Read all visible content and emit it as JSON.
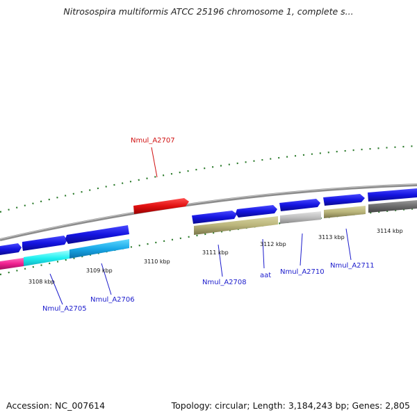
{
  "title": "Nitrosospira multiformis ATCC 25196 chromosome 1, complete s...",
  "footer": {
    "accession": "Accession: NC_007614",
    "stats": "Topology: circular; Length: 3,184,243 bp; Genes: 2,805"
  },
  "colors": {
    "background": "#ffffff",
    "backbone": "#8c8c8c",
    "tick": "#2a7a2a",
    "gene_forward": "#1414e0",
    "highlight_label": "#d01010",
    "label": "#1a1acc"
  },
  "ticks": [
    {
      "label": "3108 kbp"
    },
    {
      "label": "3109 kbp"
    },
    {
      "label": "3110 kbp"
    },
    {
      "label": "3111 kbp"
    },
    {
      "label": "3112 kbp"
    },
    {
      "label": "3113 kbp"
    },
    {
      "label": "3114 kbp"
    }
  ],
  "genes": [
    {
      "label": "Nmul_A2705",
      "strand": "forward",
      "color": "#1414e0",
      "highlight": false
    },
    {
      "label": "Nmul_A2706",
      "strand": "forward",
      "color": "#1414e0",
      "highlight": false
    },
    {
      "label": "Nmul_A2707",
      "strand": "forward",
      "color": "#e01414",
      "highlight": true
    },
    {
      "label": "Nmul_A2708",
      "strand": "forward",
      "color": "#1414e0",
      "highlight": false
    },
    {
      "label": "aat",
      "strand": "forward",
      "color": "#1414e0",
      "highlight": false
    },
    {
      "label": "Nmul_A2710",
      "strand": "forward",
      "color": "#1414e0",
      "highlight": false
    },
    {
      "label": "Nmul_A2711",
      "strand": "forward",
      "color": "#1414e0",
      "highlight": false
    }
  ]
}
